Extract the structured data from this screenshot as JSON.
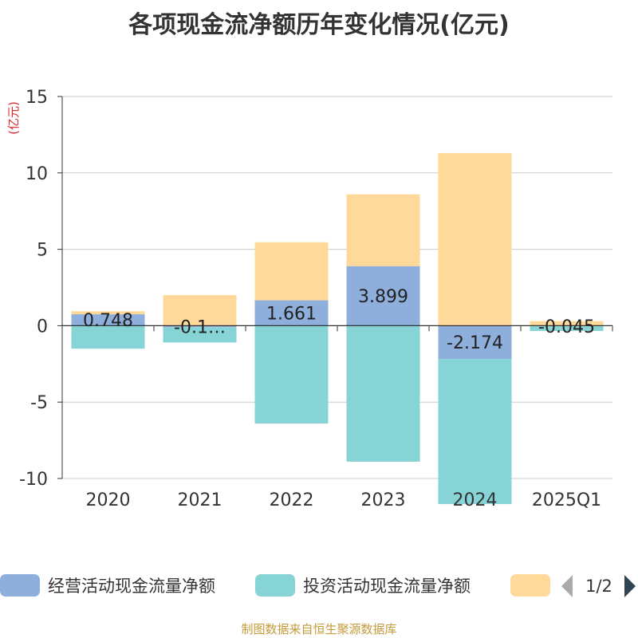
{
  "chart_data": {
    "type": "bar",
    "stacked": true,
    "title": "各项现金流净额历年变化情况(亿元)",
    "ylabel": "(亿元)",
    "ylim": [
      -10,
      15
    ],
    "yticks": [
      15,
      10,
      5,
      0,
      -5,
      -10
    ],
    "grid": true,
    "categories": [
      "2020",
      "2021",
      "2022",
      "2023",
      "2024",
      "2025Q1"
    ],
    "series": [
      {
        "name": "经营活动现金流量净额",
        "color": "#8eaedb",
        "values": [
          0.748,
          -0.1,
          1.661,
          3.899,
          -2.174,
          -0.045
        ],
        "labels": [
          "0.748",
          "-0.1…",
          "1.661",
          "3.899",
          "-2.174",
          "-0.045"
        ]
      },
      {
        "name": "投资活动现金流量净额",
        "color": "#87d4d7",
        "values": [
          -1.5,
          -1.0,
          -6.4,
          -8.9,
          -9.5,
          -0.3
        ]
      },
      {
        "name": "",
        "color": "#ffd999",
        "values": [
          0.2,
          2.0,
          3.8,
          4.7,
          11.3,
          0.3
        ]
      }
    ],
    "legend_position": "bottom",
    "legend_page": "1/2"
  },
  "footer": "制图数据来自恒生聚源数据库"
}
